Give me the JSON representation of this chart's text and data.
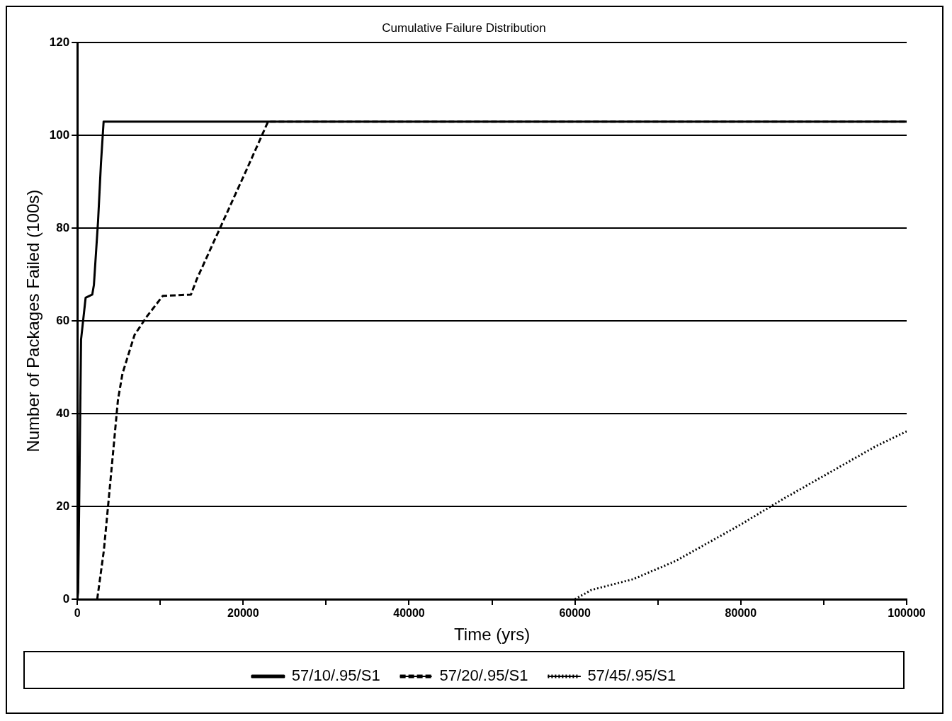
{
  "chart_data": {
    "type": "line",
    "title": "Cumulative Failure Distribution",
    "xlabel": "Time (yrs)",
    "ylabel": "Number of Packages Failed (100s)",
    "xlim": [
      0,
      100000
    ],
    "xticks": [
      0,
      {
        "value": 10000,
        "label": null
      },
      20000,
      {
        "value": 30000,
        "label": null
      },
      40000,
      {
        "value": 50000,
        "label": null
      },
      60000,
      {
        "value": 70000,
        "label": null
      },
      80000,
      {
        "value": 90000,
        "label": null
      },
      100000
    ],
    "ylim": [
      0,
      120
    ],
    "yticks": [
      0,
      20,
      40,
      60,
      80,
      100,
      120
    ],
    "grid": "y",
    "legend": "bottom",
    "marker": "none",
    "series": [
      {
        "name": "57/10/.95/S1",
        "color": "#000000",
        "line_style": "solid",
        "x": [
          0,
          100,
          450,
          1000,
          1800,
          2000,
          2500,
          2850,
          3170,
          100000
        ],
        "values": [
          0,
          1.5,
          56,
          65,
          65.7,
          67.8,
          81.5,
          94,
          103,
          103
        ]
      },
      {
        "name": "57/20/.95/S1",
        "color": "#000000",
        "line_style": "dashed",
        "x": [
          2400,
          3200,
          3750,
          4300,
          4900,
          5450,
          6900,
          8400,
          10300,
          13700,
          14400,
          17400,
          20400,
          23000,
          100000
        ],
        "values": [
          0,
          10.5,
          20.9,
          31.4,
          43,
          48.7,
          57,
          61,
          65.4,
          65.7,
          69,
          80.8,
          92.6,
          103,
          103
        ]
      },
      {
        "name": "57/45/.95/S1",
        "color": "#000000",
        "line_style": "dotted",
        "x": [
          60000,
          62000,
          67000,
          72100,
          79900,
          84900,
          90300,
          96300,
          100000
        ],
        "values": [
          0,
          2,
          4.3,
          8.2,
          16,
          21.4,
          26.9,
          33,
          36.2
        ]
      }
    ]
  }
}
